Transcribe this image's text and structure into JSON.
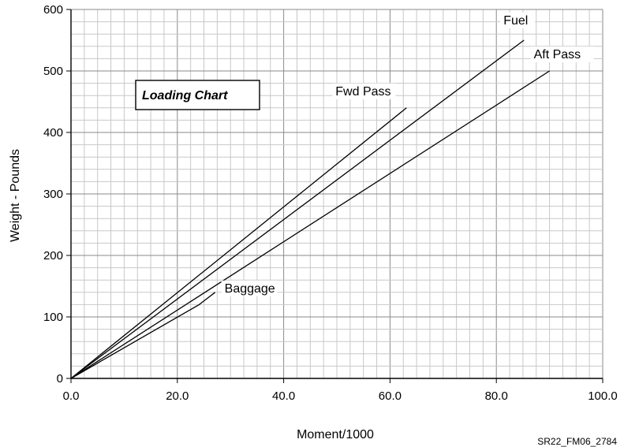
{
  "chart_data": {
    "type": "line",
    "title": "Loading Chart",
    "xlabel": "Moment/1000",
    "ylabel": "Weight - Pounds",
    "xlim": [
      0,
      100
    ],
    "ylim": [
      0,
      600
    ],
    "x_ticks": [
      "0.0",
      "20.0",
      "40.0",
      "60.0",
      "80.0",
      "100.0"
    ],
    "y_ticks": [
      "0",
      "100",
      "200",
      "300",
      "400",
      "500",
      "600"
    ],
    "grid": true,
    "series": [
      {
        "name": "Fwd Pass",
        "x": [
          0,
          63.1
        ],
        "y": [
          0,
          440
        ]
      },
      {
        "name": "Fuel",
        "x": [
          0,
          85.2
        ],
        "y": [
          0,
          550
        ]
      },
      {
        "name": "Aft Pass",
        "x": [
          0,
          90.0
        ],
        "y": [
          0,
          500
        ]
      },
      {
        "name": "Baggage",
        "x": [
          0,
          24.1,
          27.1
        ],
        "y": [
          0,
          120,
          140
        ]
      }
    ],
    "footnote": "SR22_FM06_2784"
  }
}
